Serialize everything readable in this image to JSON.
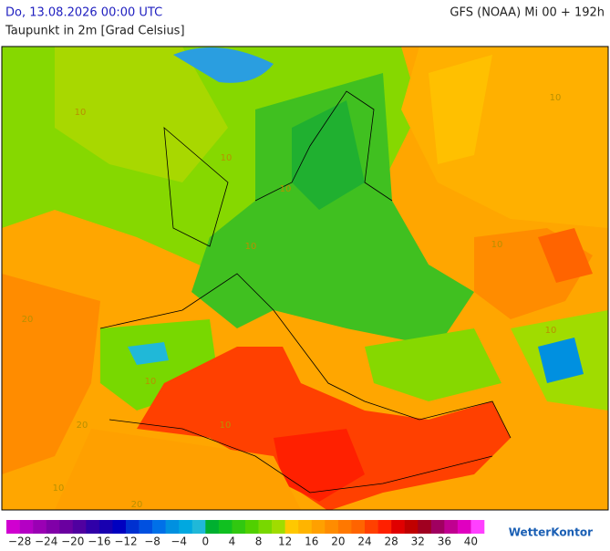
{
  "header": {
    "date": "Do, 13.08.2026 00:00 UTC",
    "model": "GFS (NOAA) Mi 00 + 192h",
    "parameter": "Taupunkt in 2m [Grad Celsius]"
  },
  "map_labels": [
    "10",
    "10",
    "10",
    "10",
    "10",
    "10",
    "20",
    "10",
    "10",
    "20",
    "10",
    "10",
    "20"
  ],
  "colorbar": {
    "lim": [
      -30,
      42
    ],
    "ticks": [
      {
        "value": -28,
        "label": "−28"
      },
      {
        "value": -24,
        "label": "−24"
      },
      {
        "value": -20,
        "label": "−20"
      },
      {
        "value": -16,
        "label": "−16"
      },
      {
        "value": -12,
        "label": "−12"
      },
      {
        "value": -8,
        "label": "−8"
      },
      {
        "value": -4,
        "label": "−4"
      },
      0,
      4,
      8,
      12,
      16,
      20,
      24,
      28,
      32,
      36,
      40
    ],
    "colors": [
      "#d000d0",
      "#b400c4",
      "#9a00b4",
      "#8000a8",
      "#6a00a0",
      "#5000a0",
      "#3000a8",
      "#1800b0",
      "#0000c0",
      "#0030d0",
      "#0050e0",
      "#0070e8",
      "#0090e0",
      "#00a8e0",
      "#20b8d8",
      "#00b030",
      "#10c020",
      "#30c810",
      "#50d000",
      "#78d800",
      "#a0dc00",
      "#ffc800",
      "#ffb400",
      "#ffa000",
      "#ff8c00",
      "#ff7800",
      "#ff6400",
      "#ff4000",
      "#ff2000",
      "#e00000",
      "#c00000",
      "#a00020",
      "#a00060",
      "#c00090",
      "#e000c0",
      "#ff40ff"
    ]
  },
  "brand": "WetterKontor"
}
